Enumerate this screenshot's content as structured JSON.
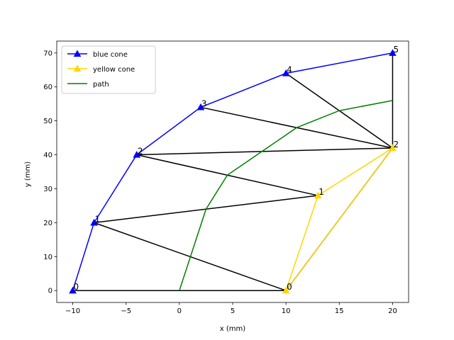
{
  "chart_data": {
    "type": "line",
    "xlabel": "x (mm)",
    "ylabel": "y (mm)",
    "xlim": [
      -11.5,
      21.5
    ],
    "ylim": [
      -3.5,
      73.5
    ],
    "xticks": [
      -10,
      -5,
      0,
      5,
      10,
      15,
      20
    ],
    "yticks": [
      0,
      10,
      20,
      30,
      40,
      50,
      60,
      70
    ],
    "xtick_labels": [
      "−10",
      "−5",
      "0",
      "5",
      "10",
      "15",
      "20"
    ],
    "ytick_labels": [
      "0",
      "10",
      "20",
      "30",
      "40",
      "50",
      "60",
      "70"
    ],
    "legend_position": "top-left",
    "series": [
      {
        "name": "blue cone",
        "color": "#0000ff",
        "marker": "triangle",
        "x": [
          -10,
          -8,
          -4,
          2,
          10,
          20
        ],
        "y": [
          0,
          20,
          40,
          54,
          64,
          70
        ],
        "labels": [
          "0",
          "1",
          "2",
          "3",
          "4",
          "5"
        ]
      },
      {
        "name": "yellow cone",
        "color": "#ffd700",
        "marker": "triangle",
        "x": [
          10,
          13,
          20
        ],
        "y": [
          0,
          28,
          42
        ],
        "labels": [
          "0",
          "1",
          "2"
        ]
      },
      {
        "name": "path",
        "color": "#008000",
        "marker": "none",
        "x": [
          0,
          2.5,
          4.5,
          11,
          15,
          20
        ],
        "y": [
          0,
          24,
          34,
          48,
          53,
          56
        ]
      }
    ],
    "triangulation_color": "#000000",
    "triangulation_edges": [
      [
        [
          -10,
          0
        ],
        [
          10,
          0
        ]
      ],
      [
        [
          -8,
          20
        ],
        [
          10,
          0
        ]
      ],
      [
        [
          -8,
          20
        ],
        [
          13,
          28
        ]
      ],
      [
        [
          -4,
          40
        ],
        [
          13,
          28
        ]
      ],
      [
        [
          -4,
          40
        ],
        [
          20,
          42
        ]
      ],
      [
        [
          2,
          54
        ],
        [
          20,
          42
        ]
      ],
      [
        [
          10,
          64
        ],
        [
          20,
          42
        ]
      ],
      [
        [
          20,
          70
        ],
        [
          20,
          42
        ]
      ],
      [
        [
          10,
          0
        ],
        [
          20,
          42
        ]
      ]
    ]
  }
}
